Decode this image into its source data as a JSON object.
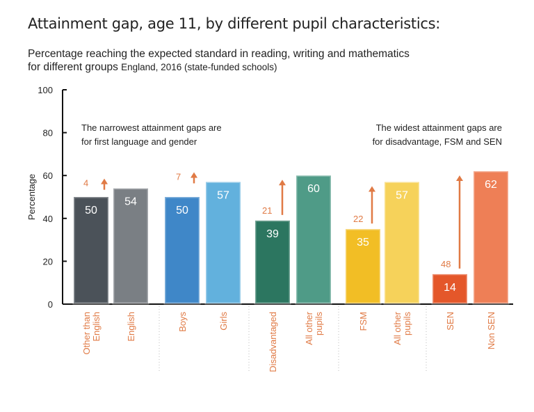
{
  "title": "Attainment gap, age 11, by different pupil characteristics:",
  "subtitle_line1": "Percentage reaching the expected standard in reading, writing and mathematics",
  "subtitle_line2a": "for different groups",
  "subtitle_line2b": "England, 2016 (state-funded schools)",
  "chart_data": {
    "type": "bar",
    "ylabel": "Percentage",
    "xlabel": "",
    "ylim": [
      0,
      100
    ],
    "yticks": [
      "0",
      "20",
      "40",
      "60",
      "80",
      "100"
    ],
    "categories": [
      [
        "Other than",
        "English"
      ],
      [
        "English"
      ],
      [
        "Boys"
      ],
      [
        "Girls"
      ],
      [
        "Disadvantaged"
      ],
      [
        "All other",
        "pupils"
      ],
      [
        "FSM"
      ],
      [
        "All other",
        "pupils"
      ],
      [
        "SEN"
      ],
      [
        "Non SEN"
      ]
    ],
    "values": [
      50,
      54,
      50,
      57,
      39,
      60,
      35,
      57,
      14,
      62
    ],
    "colors": [
      "#4b5259",
      "#7a7f84",
      "#3f87c8",
      "#62b1dd",
      "#2c7660",
      "#4f9b87",
      "#f2be25",
      "#f6d25a",
      "#e4572a",
      "#ee7f56"
    ],
    "gaps": [
      {
        "label": "4",
        "from": 50,
        "to": 54
      },
      {
        "label": "7",
        "from": 50,
        "to": 57
      },
      {
        "label": "21",
        "from": 39,
        "to": 60
      },
      {
        "label": "22",
        "from": 35,
        "to": 57
      },
      {
        "label": "48",
        "from": 14,
        "to": 62
      }
    ],
    "annotations": [
      {
        "line1": "The narrowest attainment gaps are",
        "line2": "for first language and gender"
      },
      {
        "line1": "The widest attainment gaps are",
        "line2": "for disadvantage, FSM and SEN"
      }
    ],
    "accent_color": "#e07a45",
    "grid": false
  }
}
